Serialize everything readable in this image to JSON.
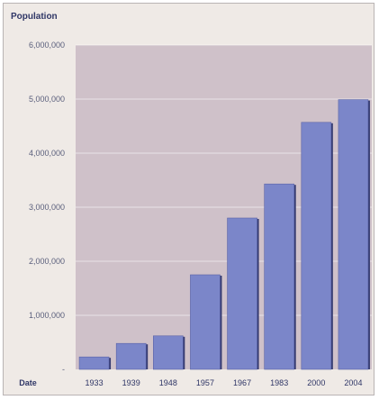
{
  "chart_data": {
    "type": "bar",
    "title": "Population",
    "xlabel": "Date",
    "ylabel": "",
    "categories": [
      "1933",
      "1939",
      "1948",
      "1957",
      "1967",
      "1983",
      "2000",
      "2004"
    ],
    "values": [
      230000,
      480000,
      620000,
      1750000,
      2800000,
      3430000,
      4570000,
      4990000
    ],
    "ylim": [
      0,
      6000000
    ],
    "y_ticks": [
      "-",
      "1,000,000",
      "2,000,000",
      "3,000,000",
      "4,000,000",
      "5,000,000",
      "6,000,000"
    ],
    "grid": true,
    "colors": {
      "bar": "#7b86c9",
      "bar_shadow": "#343a70",
      "plot_background": "#cfc1c9",
      "frame_background": "#efeae6",
      "grid": "#ffffff"
    }
  }
}
